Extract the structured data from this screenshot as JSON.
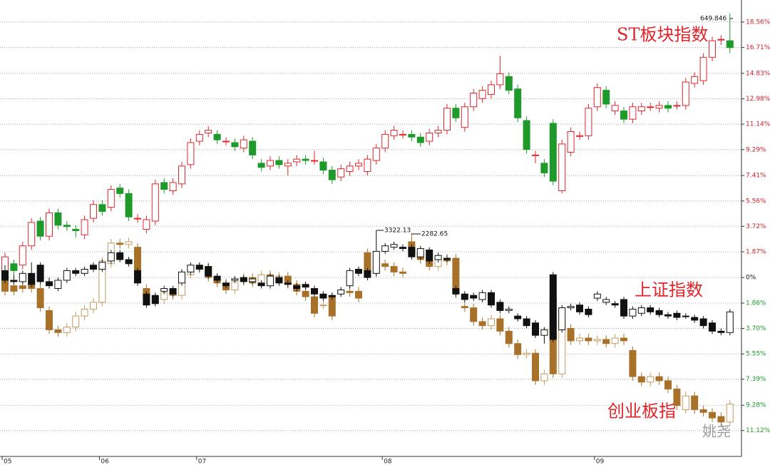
{
  "chart_data": {
    "type": "candlestick",
    "categories": [
      "05",
      null,
      null,
      null,
      null,
      null,
      null,
      null,
      null,
      null,
      null,
      "06",
      null,
      null,
      null,
      null,
      null,
      null,
      null,
      null,
      null,
      null,
      "07",
      null,
      null,
      null,
      null,
      null,
      null,
      null,
      null,
      null,
      null,
      null,
      null,
      null,
      null,
      null,
      null,
      null,
      null,
      null,
      null,
      "08",
      null,
      null,
      null,
      null,
      null,
      null,
      null,
      null,
      null,
      null,
      null,
      null,
      null,
      null,
      null,
      null,
      null,
      null,
      null,
      null,
      null,
      null,
      null,
      "09",
      null,
      null,
      null,
      null,
      null,
      null,
      null,
      null,
      null,
      null,
      null,
      null,
      null,
      null,
      null
    ],
    "ylim": [
      -13.0,
      20.16
    ],
    "yticks": [
      {
        "value": 18.56,
        "label": "18.56%"
      },
      {
        "value": 16.71,
        "label": "16.71%"
      },
      {
        "value": 14.83,
        "label": "14.83%"
      },
      {
        "value": 12.98,
        "label": "12.98%"
      },
      {
        "value": 11.14,
        "label": "11.14%"
      },
      {
        "value": 9.29,
        "label": "9.29%"
      },
      {
        "value": 7.41,
        "label": "7.41%"
      },
      {
        "value": 5.56,
        "label": "5.56%"
      },
      {
        "value": 3.72,
        "label": "3.72%"
      },
      {
        "value": 1.87,
        "label": "1.87%"
      },
      {
        "value": 0,
        "label": "0%"
      },
      {
        "value": -1.86,
        "label": "1.86%"
      },
      {
        "value": -3.7,
        "label": "3.70%"
      },
      {
        "value": -5.55,
        "label": "5.55%"
      },
      {
        "value": -7.39,
        "label": "7.39%"
      },
      {
        "value": -9.28,
        "label": "9.28%"
      },
      {
        "value": -11.12,
        "label": "11.12%"
      }
    ],
    "grid": true,
    "annotations": [
      "649.846",
      "3322.13",
      "2282.65"
    ],
    "watermark": "姚尧",
    "series": [
      {
        "name": "ST板块指数",
        "up_color": "#e0262b",
        "down_color": "#1e9a2a",
        "hollow_up": true,
        "open": [
          -0.2,
          1.0,
          0.9,
          2.3,
          4.1,
          3.0,
          4.7,
          3.8,
          3.5,
          3.1,
          4.3,
          5.3,
          5.1,
          6.5,
          6.1,
          4.3,
          3.5,
          4.1,
          6.9,
          6.3,
          6.8,
          8.2,
          9.9,
          10.5,
          10.4,
          9.9,
          9.8,
          9.4,
          9.9,
          8.3,
          8.1,
          8.5,
          8.1,
          8.4,
          8.6,
          8.5,
          8.4,
          7.8,
          7.3,
          7.7,
          8.1,
          7.7,
          8.5,
          9.4,
          10.3,
          10.4,
          10.4,
          10.2,
          9.9,
          10.5,
          10.7,
          12.3,
          10.9,
          12.4,
          13.0,
          13.3,
          14.0,
          14.6,
          13.7,
          11.4,
          8.9,
          8.3,
          11.2,
          6.3,
          9.1,
          10.3,
          10.3,
          12.4,
          13.6,
          12.1,
          12.1,
          11.5,
          12.1,
          12.4,
          12.3,
          12.5,
          12.5,
          12.5,
          14.1,
          14.3,
          16.0,
          17.3,
          17.2
        ],
        "high": [
          1.8,
          1.3,
          2.6,
          4.3,
          4.4,
          5.0,
          5.0,
          4.1,
          3.8,
          4.5,
          5.6,
          5.6,
          6.7,
          6.8,
          6.4,
          4.6,
          4.5,
          7.1,
          7.2,
          7.2,
          8.4,
          10.1,
          10.7,
          11.0,
          10.7,
          10.2,
          10.1,
          10.3,
          10.2,
          8.6,
          8.8,
          8.8,
          8.6,
          8.9,
          8.9,
          9.2,
          8.7,
          8.1,
          8.2,
          8.4,
          8.6,
          8.9,
          9.7,
          10.7,
          11.0,
          10.7,
          10.7,
          10.5,
          10.8,
          11.0,
          12.6,
          12.6,
          12.7,
          13.7,
          13.9,
          14.3,
          16.1,
          14.9,
          14.0,
          11.7,
          9.2,
          8.6,
          11.5,
          10.0,
          10.9,
          10.6,
          12.6,
          14.1,
          13.9,
          12.8,
          12.4,
          12.7,
          12.7,
          12.7,
          12.8,
          12.8,
          12.8,
          14.5,
          14.9,
          16.3,
          17.5,
          17.6,
          19.2
        ],
        "low": [
          -0.5,
          0.2,
          0.6,
          2.0,
          2.7,
          2.7,
          3.5,
          3.4,
          2.9,
          2.8,
          4.0,
          4.5,
          4.8,
          5.8,
          4.1,
          4.0,
          3.2,
          3.8,
          6.1,
          6.0,
          6.5,
          7.9,
          9.6,
          10.2,
          9.7,
          9.6,
          9.2,
          9.1,
          8.6,
          7.7,
          7.8,
          7.9,
          7.4,
          8.1,
          8.2,
          8.2,
          7.5,
          6.8,
          7.0,
          7.4,
          7.8,
          7.4,
          8.2,
          9.1,
          10.0,
          10.1,
          9.9,
          9.5,
          9.6,
          10.2,
          10.4,
          11.3,
          10.6,
          12.1,
          12.7,
          13.0,
          13.7,
          13.3,
          11.3,
          9.0,
          8.3,
          7.3,
          6.7,
          6.1,
          8.8,
          10.0,
          10.0,
          12.1,
          12.3,
          11.8,
          11.2,
          11.2,
          11.8,
          12.1,
          12.0,
          12.0,
          12.2,
          12.2,
          13.8,
          14.0,
          15.7,
          16.9,
          16.3
        ],
        "close": [
          1.5,
          0.5,
          2.3,
          4.0,
          3.0,
          4.7,
          3.8,
          3.7,
          3.4,
          4.2,
          5.3,
          4.8,
          6.4,
          6.1,
          4.4,
          4.3,
          4.2,
          6.8,
          6.4,
          6.9,
          8.1,
          9.8,
          10.4,
          10.7,
          10.0,
          9.9,
          9.5,
          10.0,
          8.9,
          8.0,
          8.5,
          8.2,
          8.3,
          8.6,
          8.5,
          8.5,
          7.8,
          7.1,
          7.9,
          8.1,
          8.3,
          8.6,
          9.4,
          10.4,
          10.7,
          10.4,
          10.2,
          9.8,
          10.5,
          10.7,
          12.3,
          11.6,
          12.4,
          13.4,
          13.6,
          14.0,
          14.8,
          13.6,
          11.6,
          9.3,
          8.9,
          7.6,
          7.0,
          9.7,
          10.6,
          10.3,
          12.3,
          13.8,
          12.6,
          12.5,
          11.5,
          12.4,
          12.4,
          12.4,
          12.5,
          12.3,
          12.5,
          14.2,
          14.6,
          16.0,
          17.2,
          17.3,
          16.7
        ]
      },
      {
        "name": "创业板指",
        "up_color": "#c49a5e",
        "down_color": "#a8712a",
        "hollow_up": true,
        "open": [
          0.0,
          -0.6,
          -0.6,
          -0.2,
          -0.8,
          -2.4,
          -3.8,
          -4.0,
          -3.6,
          -2.8,
          -2.3,
          -1.8,
          1.0,
          2.5,
          2.4,
          2.2,
          -0.8,
          -1.5,
          -1.6,
          -1.1,
          -1.3,
          0.2,
          0.6,
          0.8,
          0.0,
          -0.4,
          -0.9,
          -0.3,
          0.0,
          -0.4,
          0.2,
          -0.2,
          0.1,
          -0.5,
          -1.0,
          -1.4,
          -2.0,
          -1.4,
          -1.1,
          -1.0,
          -1.0,
          1.8,
          0.3,
          1.0,
          0.8,
          0.4,
          2.6,
          1.8,
          1.3,
          0.8,
          1.4,
          1.4,
          -2.1,
          -2.2,
          -3.2,
          -3.5,
          -3.0,
          -3.9,
          -4.8,
          -5.6,
          -5.5,
          -7.5,
          -1.5,
          -7.0,
          -3.7,
          -4.6,
          -4.4,
          -4.6,
          -4.5,
          -4.8,
          -4.4,
          -5.3,
          -7.2,
          -7.6,
          -7.2,
          -7.5,
          -8.1,
          -9.6,
          -8.6,
          -9.6,
          -9.8,
          -10.1,
          -10.5
        ],
        "high": [
          0.3,
          -0.3,
          -0.3,
          0.1,
          -0.5,
          -2.1,
          -3.5,
          -3.3,
          -2.5,
          -2.0,
          -1.5,
          1.5,
          2.8,
          2.8,
          2.9,
          2.5,
          -0.5,
          -1.2,
          -0.8,
          -0.8,
          0.5,
          0.9,
          1.1,
          1.1,
          0.3,
          -0.1,
          0.0,
          0.3,
          0.3,
          0.5,
          0.5,
          0.4,
          0.4,
          -0.2,
          -0.7,
          -1.1,
          -1.7,
          -1.1,
          -0.7,
          -0.7,
          -0.7,
          2.1,
          1.3,
          1.3,
          1.1,
          0.7,
          3.2,
          2.1,
          1.6,
          1.7,
          1.7,
          1.7,
          -1.8,
          -1.9,
          -2.9,
          -2.7,
          -2.7,
          -3.6,
          -4.5,
          -5.2,
          -5.2,
          -6.7,
          -1.2,
          -2.9,
          -3.4,
          -4.1,
          -4.1,
          -4.2,
          -4.2,
          -4.1,
          -4.1,
          -5.0,
          -6.9,
          -6.9,
          -6.9,
          -7.2,
          -7.8,
          -8.3,
          -8.3,
          -9.3,
          -9.5,
          -9.8,
          -8.9
        ],
        "low": [
          -1.3,
          -1.3,
          -1.1,
          -1.1,
          -2.5,
          -4.1,
          -4.3,
          -4.3,
          -3.9,
          -3.1,
          -2.6,
          -2.1,
          0.7,
          2.1,
          2.1,
          -0.6,
          -1.8,
          -1.9,
          -1.9,
          -1.6,
          -1.6,
          -0.1,
          0.3,
          -0.3,
          -0.7,
          -1.2,
          -1.2,
          -0.6,
          -0.7,
          -0.7,
          -0.5,
          -0.5,
          -0.8,
          -1.3,
          -1.7,
          -2.9,
          -2.3,
          -3.1,
          -1.4,
          -1.4,
          -1.8,
          0.0,
          0.0,
          0.5,
          0.1,
          0.0,
          1.5,
          1.0,
          0.5,
          0.5,
          0.9,
          -1.5,
          -2.5,
          -3.5,
          -3.8,
          -3.8,
          -4.2,
          -5.1,
          -5.9,
          -5.9,
          -7.8,
          -7.8,
          -7.3,
          -7.3,
          -4.9,
          -4.9,
          -4.9,
          -4.9,
          -5.1,
          -5.1,
          -4.9,
          -7.5,
          -7.9,
          -7.9,
          -7.8,
          -8.4,
          -9.6,
          -9.9,
          -9.9,
          -10.1,
          -10.5,
          -10.8,
          -10.8
        ],
        "close": [
          -1.0,
          -1.0,
          -0.8,
          -0.8,
          -2.2,
          -3.8,
          -4.0,
          -3.6,
          -2.8,
          -2.3,
          -1.8,
          1.2,
          2.5,
          2.4,
          2.6,
          -0.3,
          -1.5,
          -1.6,
          -1.1,
          -1.3,
          0.2,
          0.6,
          0.8,
          0.0,
          -0.4,
          -0.9,
          -0.3,
          0.0,
          -0.4,
          0.2,
          -0.2,
          0.1,
          -0.5,
          -1.0,
          -1.4,
          -2.6,
          -2.0,
          -2.8,
          -1.0,
          -1.1,
          -1.5,
          0.3,
          1.0,
          0.8,
          0.4,
          0.3,
          1.8,
          1.3,
          0.8,
          1.4,
          1.2,
          -1.2,
          -2.2,
          -3.2,
          -3.5,
          -3.0,
          -3.9,
          -4.8,
          -5.6,
          -5.5,
          -7.5,
          -7.0,
          -7.0,
          -3.2,
          -4.6,
          -4.4,
          -4.6,
          -4.5,
          -4.8,
          -4.4,
          -4.6,
          -7.2,
          -7.6,
          -7.2,
          -7.5,
          -8.1,
          -9.3,
          -8.6,
          -9.6,
          -9.8,
          -10.2,
          -10.5,
          -9.2
        ]
      },
      {
        "name": "上证指数",
        "up_color": "#111111",
        "down_color": "#111111",
        "hollow_up": true,
        "open": [
          0.5,
          -0.2,
          -0.3,
          0.3,
          0.9,
          -0.3,
          -0.8,
          -0.2,
          0.5,
          0.3,
          0.9,
          0.6,
          1.2,
          1.8,
          1.3,
          0.5,
          -1.2,
          -1.3,
          -1.0,
          -0.8,
          -0.4,
          0.4,
          0.9,
          0.8,
          0.1,
          -0.4,
          -0.2,
          0.0,
          -0.3,
          -0.4,
          -0.6,
          0.0,
          -0.4,
          -0.6,
          -0.5,
          -0.8,
          -1.2,
          -1.3,
          -1.2,
          -0.6,
          0.6,
          0.5,
          0.3,
          1.9,
          2.2,
          2.2,
          2.2,
          1.5,
          2.0,
          1.3,
          1.4,
          -0.8,
          -1.2,
          -1.3,
          -1.6,
          -1.1,
          -1.8,
          -2.4,
          -2.8,
          -3.0,
          -3.3,
          -4.2,
          0.2,
          -3.8,
          -2.2,
          -2.0,
          -2.3,
          -1.5,
          -1.8,
          -1.9,
          -1.6,
          -2.8,
          -2.6,
          -2.2,
          -2.4,
          -2.7,
          -2.6,
          -2.8,
          -2.9,
          -3.0,
          -3.3,
          -3.9,
          -4.0
        ],
        "high": [
          0.9,
          0.2,
          0.5,
          1.1,
          1.1,
          0.0,
          0.0,
          0.7,
          0.7,
          0.8,
          1.1,
          1.3,
          2.0,
          2.0,
          1.5,
          0.7,
          -1.0,
          -1.1,
          -0.6,
          -0.6,
          0.6,
          1.1,
          1.1,
          1.0,
          0.3,
          -0.2,
          0.1,
          0.2,
          0.0,
          -0.2,
          0.3,
          0.2,
          -0.2,
          -0.4,
          -0.3,
          -0.6,
          -1.0,
          -1.1,
          -0.7,
          0.7,
          0.8,
          0.7,
          3.4,
          2.5,
          2.6,
          2.4,
          2.4,
          2.3,
          2.2,
          1.8,
          1.6,
          -0.6,
          -1.0,
          -1.1,
          -0.9,
          -0.9,
          -1.6,
          -2.1,
          -2.6,
          -2.8,
          -3.1,
          -3.6,
          0.4,
          -2.0,
          -1.9,
          -1.8,
          -2.1,
          -1.0,
          -1.4,
          -1.7,
          -1.4,
          -2.1,
          -2.0,
          -2.0,
          -2.2,
          -2.5,
          -2.4,
          -2.6,
          -2.7,
          -2.8,
          -3.1,
          -3.7,
          -2.3
        ],
        "low": [
          -0.4,
          -0.5,
          -0.5,
          -0.7,
          -0.5,
          -0.8,
          -1.0,
          -0.4,
          0.1,
          0.1,
          0.4,
          0.4,
          1.0,
          1.1,
          0.8,
          -0.6,
          -2.2,
          -2.1,
          -1.2,
          -1.4,
          -0.6,
          0.2,
          0.4,
          -0.1,
          -0.4,
          -0.8,
          -0.4,
          -0.5,
          -0.5,
          -0.8,
          -0.8,
          -0.6,
          -0.7,
          -1.0,
          -0.9,
          -1.4,
          -1.7,
          -1.6,
          -1.4,
          -0.8,
          0.1,
          -0.2,
          0.1,
          1.7,
          2.0,
          1.9,
          1.3,
          1.3,
          1.0,
          1.1,
          1.1,
          -1.4,
          -1.8,
          -1.7,
          -1.8,
          -2.2,
          -2.6,
          -2.6,
          -3.2,
          -3.7,
          -4.4,
          -4.8,
          -4.7,
          -4.0,
          -2.4,
          -2.7,
          -2.9,
          -1.7,
          -2.0,
          -2.2,
          -3.0,
          -3.0,
          -2.8,
          -2.7,
          -2.9,
          -3.0,
          -3.1,
          -3.0,
          -3.3,
          -3.7,
          -4.1,
          -4.2,
          -4.2
        ],
        "close": [
          -0.2,
          -0.3,
          0.3,
          -0.5,
          -0.3,
          -0.6,
          -0.2,
          0.5,
          0.3,
          0.6,
          0.6,
          1.1,
          1.8,
          1.3,
          1.0,
          -0.4,
          -2.0,
          -1.9,
          -0.8,
          -1.2,
          0.4,
          0.9,
          0.6,
          0.1,
          -0.2,
          -0.6,
          -0.1,
          -0.3,
          -0.1,
          -0.6,
          0.1,
          -0.4,
          -0.5,
          -0.8,
          -0.7,
          -1.2,
          -1.5,
          -1.4,
          -0.9,
          0.5,
          0.3,
          0.0,
          1.9,
          2.3,
          2.4,
          2.1,
          1.5,
          2.1,
          1.2,
          1.6,
          1.3,
          -1.2,
          -1.6,
          -1.5,
          -1.1,
          -2.0,
          -2.4,
          -2.3,
          -3.0,
          -3.5,
          -4.2,
          -3.8,
          -4.5,
          -2.2,
          -2.1,
          -2.5,
          -2.7,
          -1.2,
          -1.6,
          -2.0,
          -2.8,
          -2.3,
          -2.2,
          -2.5,
          -2.7,
          -2.8,
          -2.9,
          -2.8,
          -3.1,
          -3.5,
          -3.9,
          -4.0,
          -2.5
        ]
      }
    ]
  }
}
